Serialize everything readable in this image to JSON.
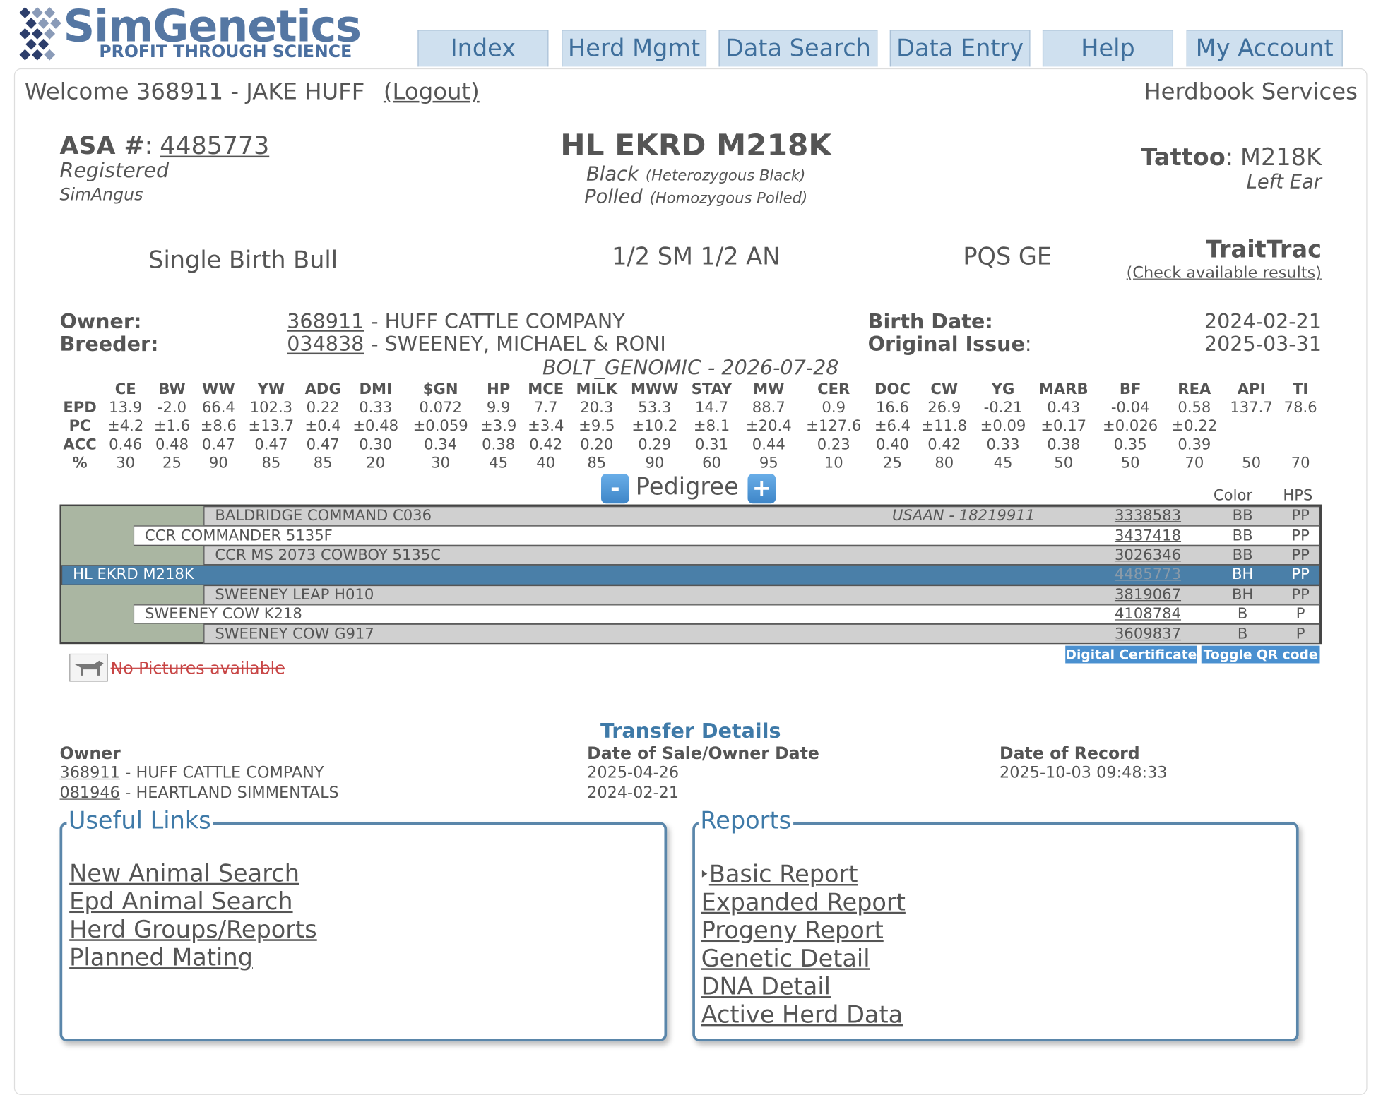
{
  "header": {
    "logo_title": "SimGenetics",
    "logo_tagline": "PROFIT THROUGH SCIENCE",
    "nav": [
      "Index",
      "Herd Mgmt",
      "Data Search",
      "Data Entry",
      "Help",
      "My Account"
    ]
  },
  "welcome": {
    "text": "Welcome 368911 - JAKE HUFF",
    "logout": "(Logout)",
    "service": "Herdbook Services"
  },
  "animal": {
    "asa_label": "ASA #",
    "asa_sep": ":",
    "asa": "4485773",
    "status": "Registered",
    "breed": "SimAngus",
    "name": "HL EKRD M218K",
    "color": "Black",
    "color_detail": "(Heterozygous Black)",
    "polled": "Polled",
    "polled_detail": "(Homozygous Polled)",
    "tattoo_label": "Tattoo",
    "tattoo_sep": ":",
    "tattoo": "M218K",
    "tattoo_location": "Left Ear",
    "birth_type": "Single Birth Bull",
    "breed_makeup": "1/2 SM 1/2 AN",
    "pqs": "PQS GE",
    "traittrac": "TraitTrac",
    "traittrac_link": "(Check available results)"
  },
  "ownership": {
    "owner_label": "Owner:",
    "owner_id": "368911",
    "owner_name": "- HUFF CATTLE COMPANY",
    "breeder_label": "Breeder:",
    "breeder_id": "034838",
    "breeder_name": "- SWEENEY, MICHAEL & RONI",
    "birth_date_label": "Birth Date:",
    "birth_date": "2024-02-21",
    "issue_label": "Original Issue",
    "issue_sep": ":",
    "issue_date": "2025-03-31"
  },
  "epd": {
    "title": "BOLT_GENOMIC - 2026-07-28",
    "columns": [
      "CE",
      "BW",
      "WW",
      "YW",
      "ADG",
      "DMI",
      "$GN",
      "HP",
      "MCE",
      "MILK",
      "MWW",
      "STAY",
      "MW",
      "CER",
      "DOC",
      "CW",
      "YG",
      "MARB",
      "BF",
      "REA",
      "API",
      "TI"
    ],
    "rows": [
      {
        "label": "EPD",
        "values": [
          "13.9",
          "-2.0",
          "66.4",
          "102.3",
          "0.22",
          "0.33",
          "0.072",
          "9.9",
          "7.7",
          "20.3",
          "53.3",
          "14.7",
          "88.7",
          "0.9",
          "16.6",
          "26.9",
          "-0.21",
          "0.43",
          "-0.04",
          "0.58",
          "137.7",
          "78.6"
        ]
      },
      {
        "label": "PC",
        "values": [
          "±4.2",
          "±1.6",
          "±8.6",
          "±13.7",
          "±0.4",
          "±0.48",
          "±0.059",
          "±3.9",
          "±3.4",
          "±9.5",
          "±10.2",
          "±8.1",
          "±20.4",
          "±127.6",
          "±6.4",
          "±11.8",
          "±0.09",
          "±0.17",
          "±0.026",
          "±0.22",
          null,
          null
        ]
      },
      {
        "label": "ACC",
        "values": [
          "0.46",
          "0.48",
          "0.47",
          "0.47",
          "0.47",
          "0.30",
          "0.34",
          "0.38",
          "0.42",
          "0.20",
          "0.29",
          "0.31",
          "0.44",
          "0.23",
          "0.40",
          "0.42",
          "0.33",
          "0.38",
          "0.35",
          "0.39",
          null,
          null
        ]
      },
      {
        "label": "%",
        "values": [
          "30",
          "25",
          "90",
          "85",
          "85",
          "20",
          "30",
          "45",
          "40",
          "85",
          "90",
          "60",
          "95",
          "10",
          "25",
          "80",
          "45",
          "50",
          "50",
          "70",
          "50",
          "70"
        ]
      }
    ]
  },
  "pedigree": {
    "title": "Pedigree",
    "collapse": "-",
    "expand": "+",
    "color_header": "Color",
    "hps_header": "HPS",
    "rows": [
      {
        "name": "BALDRIDGE COMMAND C036",
        "note": "USAAN - 18219911",
        "reg": "3338583",
        "color": "BB",
        "hps": "PP"
      },
      {
        "name": "CCR COMMANDER 5135F",
        "reg": "3437418",
        "color": "BB",
        "hps": "PP"
      },
      {
        "name": "CCR MS 2073 COWBOY 5135C",
        "reg": "3026346",
        "color": "BB",
        "hps": "PP"
      },
      {
        "name": "HL EKRD M218K",
        "reg": "4485773",
        "color": "BH",
        "hps": "PP"
      },
      {
        "name": "SWEENEY LEAP H010",
        "reg": "3819067",
        "color": "BH",
        "hps": "PP"
      },
      {
        "name": "SWEENEY COW K218",
        "reg": "4108784",
        "color": "B",
        "hps": "P"
      },
      {
        "name": "SWEENEY COW G917",
        "reg": "3609837",
        "color": "B",
        "hps": "P"
      }
    ],
    "buttons": [
      "Digital Certificate",
      "Toggle QR code"
    ],
    "no_pictures": "No Pictures available"
  },
  "transfers": {
    "title": "Transfer Details",
    "columns": [
      "Owner",
      "Date of Sale/Owner Date",
      "Date of Record"
    ],
    "rows": [
      {
        "owner_id": "368911",
        "owner_name": "- HUFF CATTLE COMPANY",
        "sale_date": "2025-04-26",
        "record_date": "2025-10-03 09:48:33"
      },
      {
        "owner_id": "081946",
        "owner_name": "- HEARTLAND SIMMENTALS",
        "sale_date": "2024-02-21",
        "record_date": null
      }
    ]
  },
  "useful_links": {
    "title": "Useful Links",
    "links": [
      "New Animal Search",
      "Epd Animal Search",
      "Herd Groups/Reports",
      "Planned Mating"
    ]
  },
  "reports": {
    "title": "Reports",
    "links": [
      "Basic Report",
      "Expanded Report",
      "Progeny Report",
      "Genetic Detail",
      "DNA Detail",
      "Active Herd Data"
    ]
  }
}
